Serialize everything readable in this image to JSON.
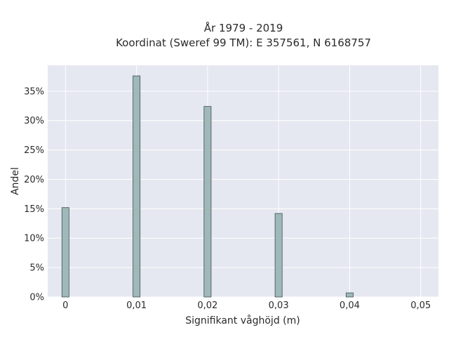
{
  "chart_data": {
    "type": "bar",
    "title_line1": "År 1979 - 2019",
    "title_line2": "Koordinat (Sweref 99 TM): E 357561, N 6168757",
    "xlabel": "Signifikant våghöjd (m)",
    "ylabel": "Andel",
    "x_ticks": [
      "0",
      "0,01",
      "0,02",
      "0,03",
      "0,04",
      "0,05"
    ],
    "x_tick_values": [
      0,
      0.01,
      0.02,
      0.03,
      0.04,
      0.05
    ],
    "y_ticks": [
      "0%",
      "5%",
      "10%",
      "15%",
      "20%",
      "25%",
      "30%",
      "35%"
    ],
    "y_tick_values": [
      0,
      5,
      10,
      15,
      20,
      25,
      30,
      35
    ],
    "xlim": [
      -0.0025,
      0.0525
    ],
    "ylim": [
      0,
      39.4
    ],
    "bin_width": 0.001,
    "bins": [
      {
        "x": 0.0,
        "value": 15.2
      },
      {
        "x": 0.01,
        "value": 37.6
      },
      {
        "x": 0.02,
        "value": 32.4
      },
      {
        "x": 0.03,
        "value": 14.2
      },
      {
        "x": 0.04,
        "value": 0.7
      }
    ],
    "grid": true,
    "colors": {
      "plot_bg": "#e5e8f0",
      "grid": "#ffffff",
      "bar_fill": "#9fb8b8",
      "bar_stroke": "#3d4f4f"
    }
  }
}
